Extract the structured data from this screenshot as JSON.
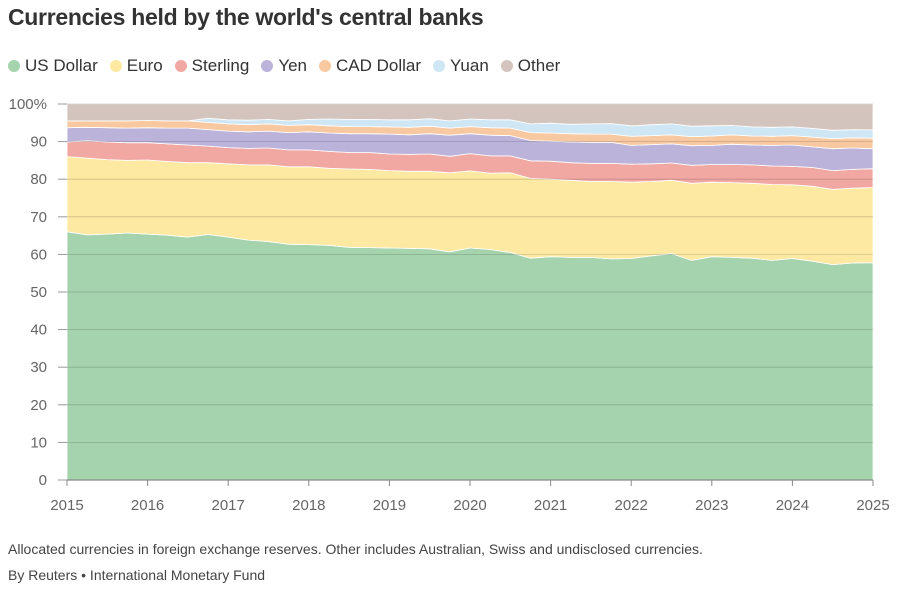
{
  "title": "Currencies held by the world's central banks",
  "note": "Allocated currencies in foreign exchange reserves. Other includes Australian, Swiss and undisclosed currencies.",
  "source": "By Reuters • International Monetary Fund",
  "chart_data": {
    "type": "area",
    "stacked": true,
    "x": [
      2015.0,
      2015.25,
      2015.5,
      2015.75,
      2016.0,
      2016.25,
      2016.5,
      2016.75,
      2017.0,
      2017.25,
      2017.5,
      2017.75,
      2018.0,
      2018.25,
      2018.5,
      2018.75,
      2019.0,
      2019.25,
      2019.5,
      2019.75,
      2020.0,
      2020.25,
      2020.5,
      2020.75,
      2021.0,
      2021.25,
      2021.5,
      2021.75,
      2022.0,
      2022.25,
      2022.5,
      2022.75,
      2023.0,
      2023.25,
      2023.5,
      2023.75,
      2024.0,
      2024.25,
      2024.5,
      2024.75,
      2025.0
    ],
    "series": [
      {
        "name": "US Dollar",
        "color": "#a4d3ad",
        "values": [
          66.0,
          65.2,
          65.4,
          65.7,
          65.4,
          65.1,
          64.6,
          65.3,
          64.6,
          63.8,
          63.4,
          62.7,
          62.6,
          62.4,
          61.9,
          61.8,
          61.7,
          61.6,
          61.5,
          60.7,
          61.7,
          61.3,
          60.5,
          59.0,
          59.4,
          59.2,
          59.2,
          58.8,
          58.9,
          59.6,
          60.2,
          58.4,
          59.4,
          59.2,
          59.0,
          58.4,
          58.9,
          58.2,
          57.3,
          57.7,
          57.8
        ]
      },
      {
        "name": "Euro",
        "color": "#fde9a1",
        "values": [
          20.0,
          20.4,
          19.8,
          19.3,
          19.7,
          19.6,
          19.8,
          19.1,
          19.5,
          20.0,
          20.4,
          20.6,
          20.7,
          20.5,
          20.8,
          20.8,
          20.6,
          20.5,
          20.6,
          21.0,
          20.5,
          20.3,
          21.2,
          21.2,
          20.6,
          20.5,
          20.2,
          20.6,
          20.3,
          19.8,
          19.5,
          20.5,
          19.8,
          19.9,
          19.9,
          20.2,
          19.6,
          19.9,
          20.0,
          19.9,
          20.0
        ]
      },
      {
        "name": "Sterling",
        "color": "#f1a8a3",
        "values": [
          3.9,
          4.6,
          4.7,
          4.7,
          4.6,
          4.7,
          4.7,
          4.4,
          4.3,
          4.4,
          4.5,
          4.5,
          4.5,
          4.5,
          4.4,
          4.5,
          4.4,
          4.5,
          4.6,
          4.4,
          4.6,
          4.6,
          4.5,
          4.7,
          4.8,
          4.7,
          4.8,
          4.8,
          4.8,
          4.7,
          4.6,
          4.8,
          4.7,
          4.8,
          4.9,
          4.9,
          4.9,
          5.0,
          5.0,
          5.0,
          5.0
        ]
      },
      {
        "name": "Yen",
        "color": "#bbb3d9",
        "values": [
          3.8,
          3.6,
          3.8,
          3.9,
          4.0,
          4.2,
          4.5,
          4.4,
          4.4,
          4.4,
          4.5,
          4.6,
          4.8,
          4.9,
          5.0,
          5.0,
          5.3,
          5.2,
          5.4,
          5.6,
          5.3,
          5.5,
          5.4,
          5.4,
          5.3,
          5.5,
          5.6,
          5.6,
          5.0,
          5.1,
          5.1,
          5.2,
          5.1,
          5.4,
          5.3,
          5.5,
          5.7,
          5.5,
          5.8,
          5.7,
          5.3
        ]
      },
      {
        "name": "CAD Dollar",
        "color": "#f8c9a0",
        "values": [
          1.8,
          1.7,
          1.8,
          1.9,
          1.9,
          1.9,
          1.9,
          1.9,
          1.9,
          1.9,
          1.9,
          1.9,
          1.9,
          1.9,
          1.9,
          1.9,
          1.9,
          2.0,
          2.0,
          1.9,
          1.9,
          2.0,
          2.0,
          2.1,
          2.2,
          2.2,
          2.2,
          2.2,
          2.4,
          2.4,
          2.4,
          2.4,
          2.5,
          2.5,
          2.4,
          2.4,
          2.5,
          2.6,
          2.7,
          2.7,
          2.8
        ]
      },
      {
        "name": "Yuan",
        "color": "#cfe6f5",
        "values": [
          0.0,
          0.0,
          0.0,
          0.0,
          0.0,
          0.0,
          0.0,
          1.1,
          1.1,
          1.2,
          1.2,
          1.2,
          1.4,
          1.8,
          1.9,
          1.9,
          1.9,
          2.0,
          2.0,
          1.9,
          2.0,
          2.1,
          2.2,
          2.3,
          2.6,
          2.5,
          2.7,
          2.8,
          2.8,
          2.9,
          2.9,
          2.8,
          2.7,
          2.5,
          2.4,
          2.4,
          2.3,
          2.3,
          2.2,
          2.2,
          2.2
        ]
      },
      {
        "name": "Other",
        "color": "#d3c5bd",
        "values": [
          4.5,
          4.5,
          4.5,
          4.5,
          4.4,
          4.5,
          4.5,
          3.8,
          4.2,
          4.3,
          4.1,
          4.5,
          4.1,
          4.0,
          4.1,
          4.1,
          4.2,
          4.2,
          3.9,
          4.5,
          4.0,
          4.2,
          4.2,
          5.3,
          5.1,
          5.4,
          5.3,
          5.2,
          5.8,
          5.5,
          5.3,
          5.9,
          5.8,
          5.7,
          6.1,
          6.2,
          6.1,
          6.5,
          7.0,
          6.8,
          6.9
        ]
      }
    ],
    "xticks": [
      "2015",
      "2016",
      "2017",
      "2018",
      "2019",
      "2020",
      "2021",
      "2022",
      "2023",
      "2024",
      "2025"
    ],
    "yticks": [
      "0",
      "10",
      "20",
      "30",
      "40",
      "50",
      "60",
      "70",
      "80",
      "90",
      "100%"
    ],
    "xlim": [
      2015,
      2025
    ],
    "ylim": [
      0,
      100
    ],
    "grid": true,
    "legend": "top-left"
  }
}
